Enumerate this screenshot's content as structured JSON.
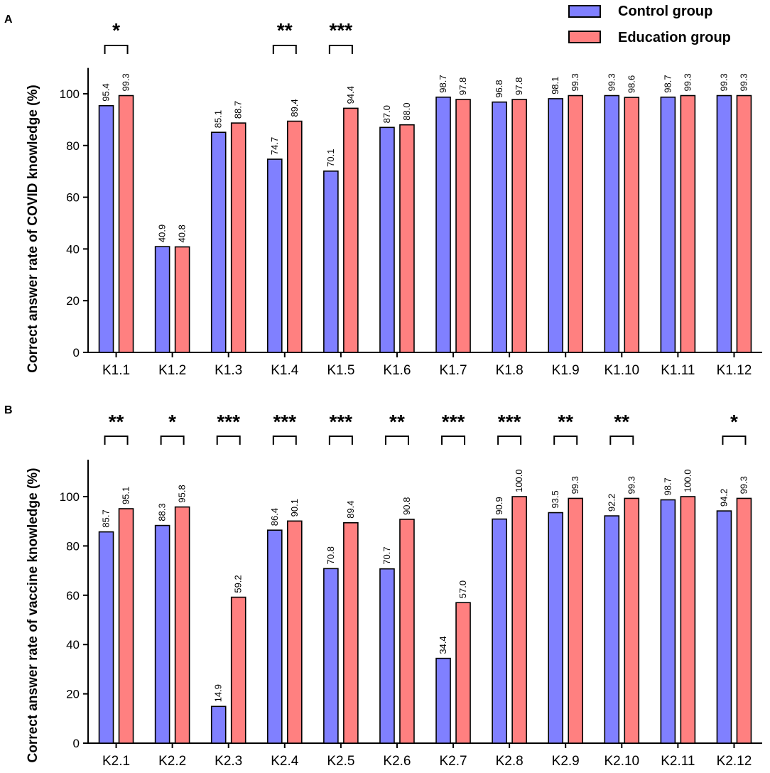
{
  "legend": {
    "control_label": "Control  group",
    "education_label": "Education group",
    "control_color": "#8080ff",
    "education_color": "#ff8080"
  },
  "chart_data": [
    {
      "type": "bar",
      "panel": "A",
      "ylabel": "Correct answer rate of COVID knowledge (%)",
      "xlabel": "",
      "ylim": [
        0,
        110
      ],
      "yticks": [
        0,
        20,
        40,
        60,
        80,
        100
      ],
      "categories": [
        "K1.1",
        "K1.2",
        "K1.3",
        "K1.4",
        "K1.5",
        "K1.6",
        "K1.7",
        "K1.8",
        "K1.9",
        "K1.10",
        "K1.11",
        "K1.12"
      ],
      "series": [
        {
          "name": "Control  group",
          "values": [
            95.4,
            40.9,
            85.1,
            74.7,
            70.1,
            87.0,
            98.7,
            96.8,
            98.1,
            99.3,
            98.7,
            99.3
          ],
          "labels": [
            "95.4",
            "40.9",
            "85.1",
            "74.7",
            "70.1",
            "87.0",
            "98.7",
            "96.8",
            "98.1",
            "99.3",
            "98.7",
            "99.3"
          ]
        },
        {
          "name": "Education group",
          "values": [
            99.3,
            40.8,
            88.7,
            89.4,
            94.4,
            88.0,
            97.8,
            97.8,
            99.3,
            98.6,
            99.3,
            99.3
          ],
          "labels": [
            "99.3",
            "40.8",
            "88.7",
            "89.4",
            "94.4",
            "88.0",
            "97.8",
            "97.8",
            "99.3",
            "98.6",
            "99.3",
            "99.3"
          ]
        }
      ],
      "significance": [
        "*",
        "",
        "",
        "**",
        "***",
        "",
        "",
        "",
        "",
        "",
        "",
        ""
      ]
    },
    {
      "type": "bar",
      "panel": "B",
      "ylabel": "Correct answer rate of vaccine knowledge (%)",
      "xlabel": "",
      "ylim": [
        0,
        115
      ],
      "yticks": [
        0,
        20,
        40,
        60,
        80,
        100
      ],
      "categories": [
        "K2.1",
        "K2.2",
        "K2.3",
        "K2.4",
        "K2.5",
        "K2.6",
        "K2.7",
        "K2.8",
        "K2.9",
        "K2.10",
        "K2.11",
        "K2.12"
      ],
      "series": [
        {
          "name": "Control  group",
          "values": [
            85.7,
            88.3,
            14.9,
            86.4,
            70.8,
            70.7,
            34.4,
            90.9,
            93.5,
            92.2,
            98.7,
            94.2
          ],
          "labels": [
            "85.7",
            "88.3",
            "14.9",
            "86.4",
            "70.8",
            "70.7",
            "34.4",
            "90.9",
            "93.5",
            "92.2",
            "98.7",
            "94.2"
          ]
        },
        {
          "name": "Education group",
          "values": [
            95.1,
            95.8,
            59.2,
            90.1,
            89.4,
            90.8,
            57.0,
            100.0,
            99.3,
            99.3,
            100.0,
            99.3
          ],
          "labels": [
            "95.1",
            "95.8",
            "59.2",
            "90.1",
            "89.4",
            "90.8",
            "57.0",
            "100.0",
            "99.3",
            "99.3",
            "100.0",
            "99.3"
          ]
        }
      ],
      "significance": [
        "**",
        "*",
        "***",
        "***",
        "***",
        "**",
        "***",
        "***",
        "**",
        "**",
        "",
        "*"
      ]
    }
  ]
}
